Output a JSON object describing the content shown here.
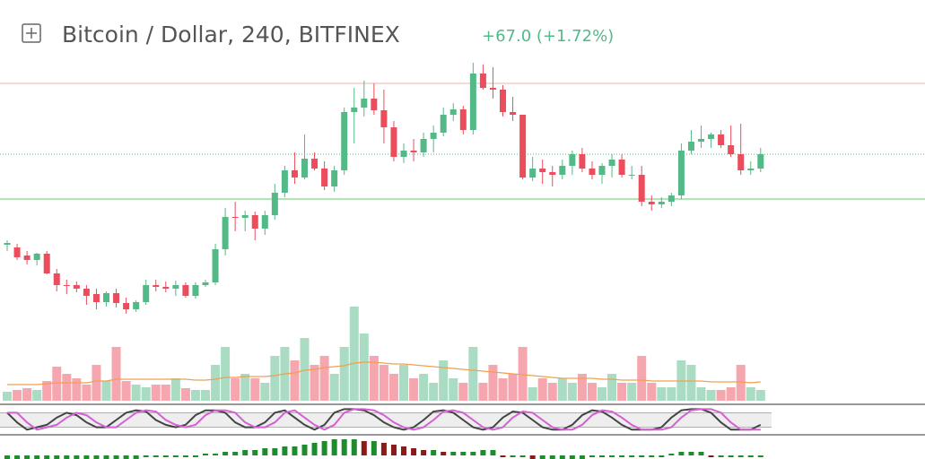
{
  "chart_data": {
    "type": "candlestick",
    "title": "Bitcoin / Dollar, 240, BITFINEX",
    "change": "+67.0 (+1.72%)",
    "up_color": "#53b987",
    "down_color": "#eb4d5c",
    "ylim": [
      3772,
      4072
    ],
    "price_lines": [
      {
        "value": 4041,
        "color": "#f5c2b4"
      },
      {
        "value": 3912,
        "color": "#7ed68a"
      }
    ],
    "last_price": 3962,
    "ohlc": [
      [
        3861,
        3866,
        3854,
        3863
      ],
      [
        3858,
        3862,
        3844,
        3847
      ],
      [
        3849,
        3854,
        3839,
        3844
      ],
      [
        3844,
        3852,
        3838,
        3851
      ],
      [
        3851,
        3854,
        3828,
        3829
      ],
      [
        3829,
        3834,
        3809,
        3816
      ],
      [
        3816,
        3822,
        3806,
        3815
      ],
      [
        3816,
        3820,
        3808,
        3812
      ],
      [
        3812,
        3816,
        3794,
        3804
      ],
      [
        3806,
        3812,
        3789,
        3797
      ],
      [
        3797,
        3809,
        3792,
        3807
      ],
      [
        3807,
        3812,
        3791,
        3796
      ],
      [
        3796,
        3802,
        3784,
        3789
      ],
      [
        3789,
        3799,
        3786,
        3797
      ],
      [
        3797,
        3822,
        3794,
        3816
      ],
      [
        3816,
        3822,
        3809,
        3814
      ],
      [
        3814,
        3820,
        3808,
        3812
      ],
      [
        3812,
        3821,
        3804,
        3816
      ],
      [
        3816,
        3819,
        3802,
        3804
      ],
      [
        3804,
        3819,
        3801,
        3816
      ],
      [
        3816,
        3822,
        3814,
        3819
      ],
      [
        3819,
        3862,
        3816,
        3856
      ],
      [
        3856,
        3902,
        3849,
        3892
      ],
      [
        3892,
        3909,
        3876,
        3891
      ],
      [
        3891,
        3899,
        3876,
        3894
      ],
      [
        3894,
        3898,
        3866,
        3879
      ],
      [
        3879,
        3899,
        3872,
        3894
      ],
      [
        3894,
        3929,
        3889,
        3919
      ],
      [
        3919,
        3949,
        3914,
        3944
      ],
      [
        3944,
        3964,
        3929,
        3936
      ],
      [
        3936,
        3984,
        3934,
        3957
      ],
      [
        3957,
        3964,
        3944,
        3946
      ],
      [
        3946,
        3954,
        3922,
        3926
      ],
      [
        3926,
        3949,
        3920,
        3944
      ],
      [
        3944,
        4014,
        3939,
        4009
      ],
      [
        4009,
        4036,
        3974,
        4014
      ],
      [
        4014,
        4044,
        4004,
        4024
      ],
      [
        4024,
        4041,
        4006,
        4011
      ],
      [
        4011,
        4034,
        3974,
        3992
      ],
      [
        3992,
        3999,
        3954,
        3959
      ],
      [
        3959,
        3974,
        3952,
        3966
      ],
      [
        3966,
        3979,
        3954,
        3964
      ],
      [
        3964,
        3986,
        3959,
        3979
      ],
      [
        3979,
        3994,
        3964,
        3986
      ],
      [
        3986,
        4014,
        3982,
        4006
      ],
      [
        4006,
        4019,
        3999,
        4012
      ],
      [
        4012,
        4016,
        3984,
        3989
      ],
      [
        3989,
        4064,
        3984,
        4052
      ],
      [
        4052,
        4062,
        4034,
        4036
      ],
      [
        4036,
        4059,
        4024,
        4034
      ],
      [
        4034,
        4039,
        4004,
        4009
      ],
      [
        4009,
        4026,
        3999,
        4006
      ],
      [
        4006,
        4006,
        3934,
        3936
      ],
      [
        3936,
        3959,
        3932,
        3946
      ],
      [
        3946,
        3956,
        3929,
        3942
      ],
      [
        3942,
        3949,
        3926,
        3939
      ],
      [
        3939,
        3956,
        3934,
        3949
      ],
      [
        3949,
        3966,
        3939,
        3962
      ],
      [
        3962,
        3969,
        3942,
        3946
      ],
      [
        3946,
        3954,
        3934,
        3939
      ],
      [
        3939,
        3952,
        3929,
        3949
      ],
      [
        3949,
        3962,
        3936,
        3956
      ],
      [
        3956,
        3962,
        3936,
        3939
      ],
      [
        3939,
        3949,
        3934,
        3939
      ],
      [
        3939,
        3949,
        3904,
        3909
      ],
      [
        3909,
        3916,
        3899,
        3906
      ],
      [
        3906,
        3914,
        3902,
        3909
      ],
      [
        3909,
        3919,
        3904,
        3916
      ],
      [
        3916,
        3974,
        3912,
        3966
      ],
      [
        3966,
        3989,
        3962,
        3976
      ],
      [
        3976,
        3994,
        3969,
        3979
      ],
      [
        3979,
        3986,
        3969,
        3984
      ],
      [
        3984,
        3989,
        3969,
        3972
      ],
      [
        3972,
        3994,
        3959,
        3962
      ],
      [
        3962,
        3996,
        3939,
        3944
      ],
      [
        3944,
        3954,
        3939,
        3946
      ],
      [
        3946,
        3969,
        3942,
        3962
      ]
    ],
    "volume_ylim": [
      0,
      110
    ],
    "volume": [
      10,
      12,
      14,
      12,
      22,
      38,
      30,
      25,
      18,
      40,
      22,
      60,
      22,
      18,
      15,
      18,
      18,
      25,
      14,
      12,
      12,
      40,
      60,
      25,
      30,
      25,
      20,
      50,
      60,
      45,
      70,
      40,
      50,
      30,
      60,
      105,
      75,
      50,
      40,
      30,
      40,
      25,
      30,
      20,
      45,
      25,
      20,
      60,
      20,
      40,
      25,
      30,
      60,
      15,
      25,
      20,
      25,
      20,
      30,
      20,
      15,
      30,
      20,
      20,
      50,
      20,
      15,
      15,
      45,
      40,
      15,
      12,
      12,
      15,
      40,
      15,
      12
    ],
    "volume_ma": {
      "color": "#f0a050",
      "values": [
        18,
        18,
        18,
        18,
        19,
        20,
        20,
        20,
        20,
        22,
        22,
        24,
        24,
        24,
        24,
        24,
        24,
        24,
        24,
        23,
        23,
        24,
        26,
        26,
        27,
        27,
        27,
        28,
        30,
        31,
        34,
        35,
        37,
        38,
        39,
        42,
        43,
        43,
        42,
        41,
        41,
        40,
        39,
        38,
        37,
        36,
        35,
        34,
        33,
        32,
        31,
        30,
        29,
        28,
        27,
        26,
        25,
        25,
        25,
        25,
        24,
        24,
        23,
        23,
        23,
        22,
        22,
        22,
        22,
        22,
        22,
        21,
        21,
        21,
        21,
        20,
        21
      ]
    },
    "oscillator_ylim": [
      0,
      100
    ],
    "oscillator_band": [
      20,
      80
    ],
    "oscillator": [
      {
        "color": "#444444",
        "values": [
          80,
          40,
          10,
          20,
          30,
          60,
          80,
          70,
          40,
          20,
          20,
          50,
          80,
          90,
          85,
          50,
          30,
          20,
          30,
          70,
          90,
          90,
          80,
          40,
          20,
          20,
          40,
          80,
          90,
          60,
          30,
          10,
          30,
          80,
          95,
          95,
          90,
          70,
          40,
          20,
          10,
          20,
          50,
          85,
          90,
          80,
          50,
          20,
          10,
          20,
          60,
          85,
          80,
          50,
          20,
          10,
          10,
          30,
          70,
          90,
          85,
          60,
          30,
          10,
          10,
          10,
          20,
          60,
          90,
          95,
          95,
          80,
          40,
          10,
          10,
          10,
          30
        ]
      },
      {
        "color": "#d55fd5",
        "values": [
          80,
          80,
          40,
          10,
          20,
          30,
          60,
          80,
          70,
          40,
          20,
          20,
          50,
          80,
          90,
          85,
          50,
          30,
          20,
          30,
          70,
          90,
          90,
          80,
          40,
          20,
          20,
          40,
          80,
          90,
          60,
          30,
          10,
          30,
          80,
          95,
          95,
          90,
          70,
          40,
          20,
          10,
          20,
          50,
          85,
          90,
          80,
          50,
          20,
          10,
          20,
          60,
          85,
          80,
          50,
          20,
          10,
          10,
          30,
          70,
          90,
          85,
          60,
          30,
          10,
          10,
          10,
          20,
          60,
          90,
          95,
          95,
          80,
          40,
          10,
          10,
          10
        ]
      }
    ],
    "histogram": [
      -2,
      -2,
      -2,
      -2,
      -2,
      -2,
      -2,
      -2,
      -2,
      -2,
      -2,
      -2,
      -2,
      -2,
      -1,
      -1,
      -1,
      -1,
      -1,
      -1,
      1,
      1,
      2,
      2,
      3,
      3,
      4,
      4,
      5,
      5,
      6,
      7,
      8,
      9,
      9,
      9,
      8,
      8,
      7,
      6,
      5,
      4,
      3,
      3,
      2,
      2,
      2,
      2,
      3,
      3,
      -1,
      -1,
      -1,
      -2,
      -2,
      -2,
      -2,
      -2,
      -2,
      -1,
      -1,
      -1,
      -1,
      -1,
      -1,
      -1,
      -1,
      1,
      2,
      2,
      2,
      -1,
      -1,
      -1,
      -1,
      -1,
      -1
    ]
  }
}
